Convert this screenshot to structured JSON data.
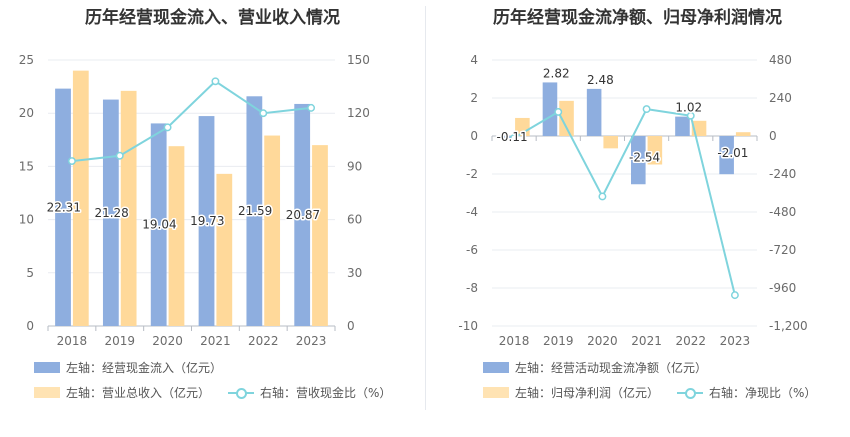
{
  "chart_data": [
    {
      "type": "bar",
      "title": "历年经营现金流入、营业收入情况",
      "categories": [
        "2018",
        "2019",
        "2020",
        "2021",
        "2022",
        "2023"
      ],
      "y_left": {
        "ticks": [
          "0",
          "5",
          "10",
          "15",
          "20",
          "25"
        ],
        "ylim": [
          0,
          25
        ]
      },
      "y_right": {
        "ticks": [
          "0",
          "30",
          "60",
          "90",
          "120",
          "150"
        ],
        "ylim": [
          0,
          150
        ]
      },
      "series": [
        {
          "name": "左轴：经营现金流入（亿元）",
          "type": "bar",
          "axis": "left",
          "color": "#8eaedf",
          "values": [
            22.31,
            21.28,
            19.04,
            19.73,
            21.59,
            20.87
          ],
          "labels": [
            "22.31",
            "21.28",
            "19.04",
            "19.73",
            "21.59",
            "20.87"
          ]
        },
        {
          "name": "左轴：营业总收入（亿元）",
          "type": "bar",
          "axis": "left",
          "color": "#ffd99a",
          "values": [
            24.0,
            22.1,
            16.9,
            14.3,
            17.9,
            17.0
          ]
        },
        {
          "name": "右轴：营收现金比（%）",
          "type": "line",
          "axis": "right",
          "color": "#7fd4dd",
          "values": [
            93,
            96,
            112,
            138,
            120,
            123
          ]
        }
      ],
      "grid": true,
      "legend_position": "bottom"
    },
    {
      "type": "bar",
      "title": "历年经营现金流净额、归母净利润情况",
      "categories": [
        "2018",
        "2019",
        "2020",
        "2021",
        "2022",
        "2023"
      ],
      "y_left": {
        "ticks": [
          "-10",
          "-8",
          "-6",
          "-4",
          "-2",
          "0",
          "2",
          "4"
        ],
        "ylim": [
          -10,
          4
        ]
      },
      "y_right": {
        "ticks": [
          "-1,200",
          "-960",
          "-720",
          "-480",
          "-240",
          "0",
          "240",
          "480"
        ],
        "ylim": [
          -1200,
          480
        ]
      },
      "series": [
        {
          "name": "左轴：经营活动现金流净额（亿元）",
          "type": "bar",
          "axis": "left",
          "color": "#8eaedf",
          "values": [
            -0.11,
            2.82,
            2.48,
            -2.54,
            1.02,
            -2.01
          ],
          "labels": [
            "-0.11",
            "2.82",
            "2.48",
            "-2.54",
            "1.02",
            "-2.01"
          ]
        },
        {
          "name": "左轴：归母净利润（亿元）",
          "type": "bar",
          "axis": "left",
          "color": "#ffd99a",
          "values": [
            0.95,
            1.85,
            -0.65,
            -1.5,
            0.8,
            0.2
          ]
        },
        {
          "name": "右轴：净现比（%）",
          "type": "line",
          "axis": "right",
          "color": "#7fd4dd",
          "values": [
            -12,
            152,
            -382,
            170,
            128,
            -1005
          ]
        }
      ],
      "grid": true,
      "legend_position": "bottom"
    }
  ]
}
